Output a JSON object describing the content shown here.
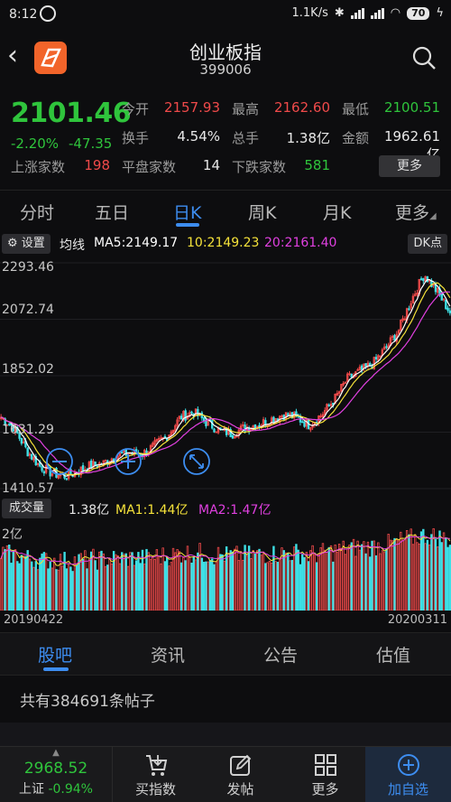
{
  "status": {
    "time": "8:12",
    "speed": "1.1K/s",
    "battery": "70"
  },
  "header": {
    "title": "创业板指",
    "code": "399006"
  },
  "quote": {
    "price": "2101.46",
    "pct": "-2.20%",
    "chg": "-47.35",
    "rows": [
      [
        {
          "l": "今开",
          "v": "2157.93",
          "c": "red"
        },
        {
          "l": "最高",
          "v": "2162.60",
          "c": "red"
        },
        {
          "l": "最低",
          "v": "2100.51",
          "c": "green"
        }
      ],
      [
        {
          "l": "换手",
          "v": "4.54%",
          "c": "white"
        },
        {
          "l": "总手",
          "v": "1.38亿",
          "c": "white"
        },
        {
          "l": "金额",
          "v": "1962.61亿",
          "c": "white"
        }
      ]
    ],
    "up_label": "上涨家数",
    "up": "198",
    "flat_label": "平盘家数",
    "flat": "14",
    "down_label": "下跌家数",
    "down": "581",
    "more": "更多"
  },
  "period_tabs": [
    "分时",
    "五日",
    "日K",
    "周K",
    "月K",
    "更多"
  ],
  "ma": {
    "settings": "设置",
    "title": "均线",
    "ma5": "MA5:2149.17",
    "ma10": "10:2149.23",
    "ma20": "20:2161.40",
    "dk": "DK点"
  },
  "price_axis": [
    "2293.46",
    "2072.74",
    "1852.02",
    "1631.29",
    "1410.57"
  ],
  "volume": {
    "label": "成交量",
    "value": "1.38亿",
    "ma1": "MA1:1.44亿",
    "ma2": "MA2:1.47亿",
    "axis": "2亿"
  },
  "dates": {
    "start": "20190422",
    "end": "20200311"
  },
  "colors": {
    "up": "#f04a4a",
    "down": "#3ee0e6",
    "ma5": "#ffffff",
    "ma10": "#f5e23a",
    "ma20": "#e040e0",
    "accent": "#3d8df0"
  },
  "content_tabs": [
    "股吧",
    "资讯",
    "公告",
    "估值"
  ],
  "posts": "共有384691条帖子",
  "bottom": {
    "index_value": "2968.52",
    "index_name": "上证",
    "index_pct": "-0.94%",
    "buy": "买指数",
    "post": "发帖",
    "more": "更多",
    "add": "加自选"
  },
  "chart_data": {
    "type": "candlestick",
    "x_range": [
      "20190422",
      "20200311"
    ],
    "ylim": [
      1410.57,
      2293.46
    ],
    "close_trend": [
      1690,
      1650,
      1560,
      1500,
      1470,
      1460,
      1480,
      1500,
      1510,
      1540,
      1550,
      1545,
      1580,
      1620,
      1690,
      1710,
      1670,
      1640,
      1625,
      1650,
      1660,
      1680,
      1700,
      1690,
      1660,
      1700,
      1760,
      1840,
      1870,
      1900,
      1960,
      2030,
      2150,
      2250,
      2180,
      2101
    ]
  }
}
